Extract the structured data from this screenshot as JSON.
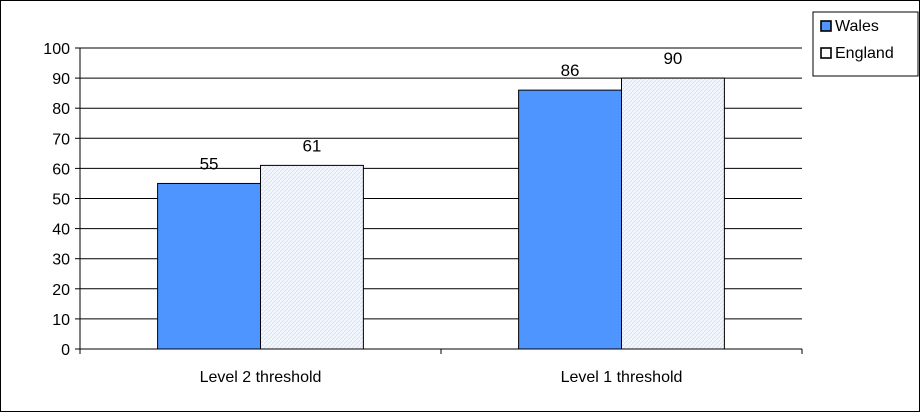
{
  "chart_data": {
    "type": "bar",
    "title": "",
    "xlabel": "",
    "ylabel": "",
    "categories": [
      "Level 2 threshold",
      "Level 1 threshold"
    ],
    "series": [
      {
        "name": "Wales",
        "values": [
          55,
          86
        ],
        "color": "#4f95ff"
      },
      {
        "name": "England",
        "values": [
          61,
          90
        ],
        "color": "#eef3fb"
      }
    ],
    "ylim": [
      0,
      100
    ],
    "yticks": [
      0,
      10,
      20,
      30,
      40,
      50,
      60,
      70,
      80,
      90,
      100
    ],
    "grid": true,
    "legend_position": "top-right",
    "data_labels": true
  }
}
